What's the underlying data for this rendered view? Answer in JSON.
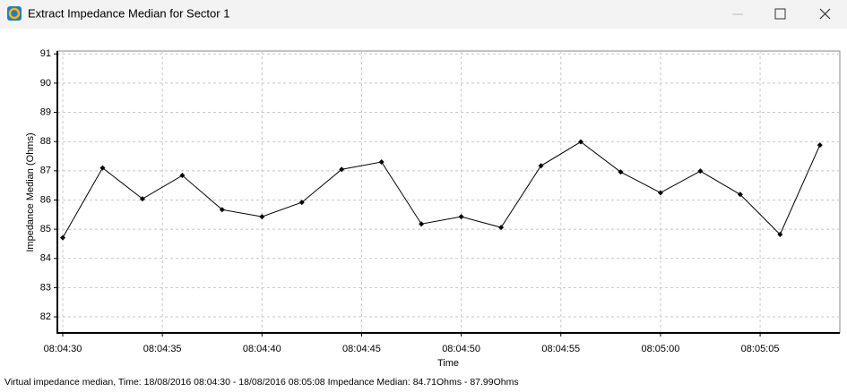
{
  "window": {
    "title": "Extract Impedance Median for Sector 1",
    "status": "Virtual impedance median, Time: 18/08/2016 08:04:30 - 18/08/2016 08:05:08 Impedance Median: 84.71Ohms - 87.99Ohms"
  },
  "chart_data": {
    "type": "line",
    "x_label": "Time",
    "y_label": "Impedance Median (Ohms)",
    "x": [
      "08:04:30",
      "08:04:32",
      "08:04:34",
      "08:04:36",
      "08:04:38",
      "08:04:40",
      "08:04:42",
      "08:04:44",
      "08:04:46",
      "08:04:48",
      "08:04:50",
      "08:04:52",
      "08:04:54",
      "08:04:56",
      "08:04:58",
      "08:05:00",
      "08:05:02",
      "08:05:04",
      "08:05:06",
      "08:05:08"
    ],
    "values": [
      84.71,
      87.1,
      86.04,
      86.84,
      85.67,
      85.43,
      85.92,
      87.05,
      87.3,
      85.18,
      85.43,
      85.06,
      87.17,
      87.99,
      86.96,
      86.25,
      86.99,
      86.19,
      84.82,
      87.88
    ],
    "color": "#000000",
    "xlim": [
      "08:04:30",
      "08:05:09"
    ],
    "xticks": [
      "08:04:30",
      "08:04:35",
      "08:04:40",
      "08:04:45",
      "08:04:50",
      "08:04:55",
      "08:05:00",
      "08:05:05"
    ],
    "ylim": [
      81.45,
      91.1
    ],
    "yticks": [
      82,
      83,
      84,
      85,
      86,
      87,
      88,
      89,
      90,
      91
    ],
    "grid": true
  }
}
